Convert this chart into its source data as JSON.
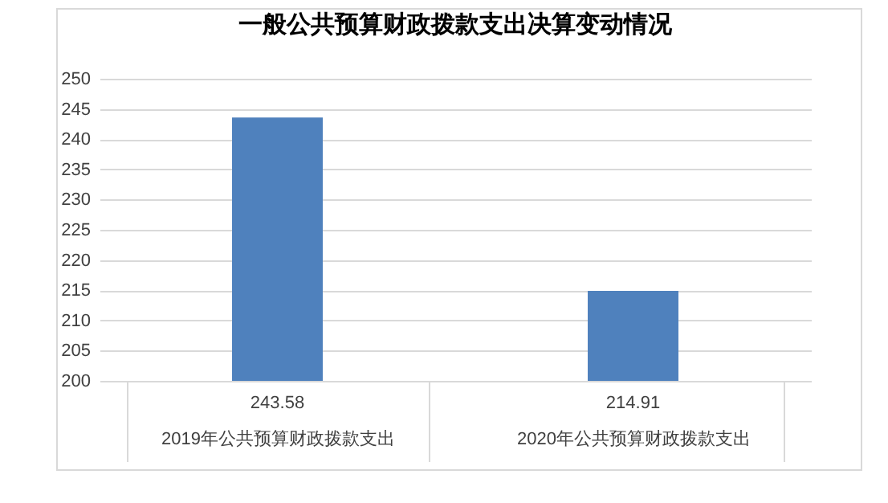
{
  "chart_data": {
    "type": "bar",
    "title": "一般公共预算财政拨款支出决算变动情况",
    "categories": [
      "2019年公共预算财政拨款支出",
      "2020年公共预算财政拨款支出"
    ],
    "values": [
      243.58,
      214.91
    ],
    "color": "#4f81bd",
    "ylim": [
      200,
      250
    ],
    "yticks": [
      200,
      205,
      210,
      215,
      220,
      225,
      230,
      235,
      240,
      245,
      250
    ],
    "grid": "y",
    "data_labels": true
  }
}
